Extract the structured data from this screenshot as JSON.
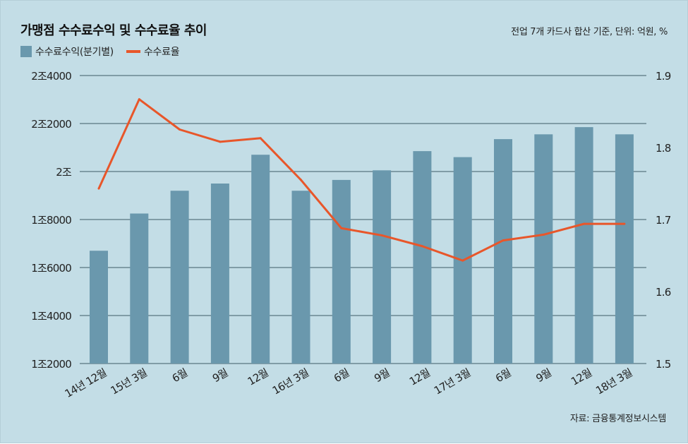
{
  "title": "가맹점 수수료수익 및 수수료율 추이",
  "unit_note": "전업 7개 카드사 합산 기준, 단위: 억원, %",
  "source": "자료: 금융통계정보시스템",
  "legend": {
    "bar_label": "수수료수익(분기별)",
    "line_label": "수수료율"
  },
  "colors": {
    "background": "#c3dde6",
    "bar": "#6a98ad",
    "line": "#e8562a",
    "grid": "#3d5a66"
  },
  "chart_data": {
    "type": "bar",
    "categories": [
      "14년 12월",
      "15년 3월",
      "6월",
      "9월",
      "12월",
      "16년 3월",
      "6월",
      "9월",
      "12월",
      "17년 3월",
      "6월",
      "9월",
      "12월",
      "18년 3월"
    ],
    "series": [
      {
        "name": "수수료수익(분기별)",
        "type": "bar",
        "axis": "left",
        "values": [
          16700,
          18250,
          19200,
          19500,
          20700,
          19200,
          19650,
          20050,
          20850,
          20600,
          21350,
          21550,
          21850,
          21550
        ]
      },
      {
        "name": "수수료율",
        "type": "line",
        "axis": "right",
        "values": [
          1.743,
          1.867,
          1.825,
          1.808,
          1.813,
          1.755,
          1.688,
          1.678,
          1.663,
          1.643,
          1.671,
          1.679,
          1.694,
          1.694
        ]
      }
    ],
    "y_left": {
      "ylim": [
        12000,
        24000
      ],
      "ticks": [
        12000,
        14000,
        16000,
        18000,
        20000,
        22000,
        24000
      ],
      "tick_labels": [
        "1조2000",
        "1조4000",
        "1조6000",
        "1조8000",
        "2조",
        "2조2000",
        "2조4000"
      ]
    },
    "y_right": {
      "ylim": [
        1.5,
        1.9
      ],
      "ticks": [
        1.5,
        1.6,
        1.7,
        1.8,
        1.9
      ],
      "tick_labels": [
        "1.5",
        "1.6",
        "1.7",
        "1.8",
        "1.9"
      ]
    },
    "grid": true,
    "legend_position": "top-left"
  }
}
